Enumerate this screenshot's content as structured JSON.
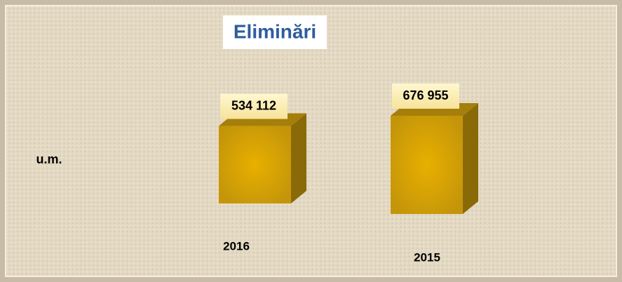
{
  "chart_data": {
    "type": "bar",
    "title": "Eliminări",
    "y_label": "u.m.",
    "categories": [
      "2016",
      "2015"
    ],
    "values": [
      534112,
      676955
    ],
    "value_labels": [
      "534 112",
      "676 955"
    ],
    "color": "#c99a08"
  }
}
